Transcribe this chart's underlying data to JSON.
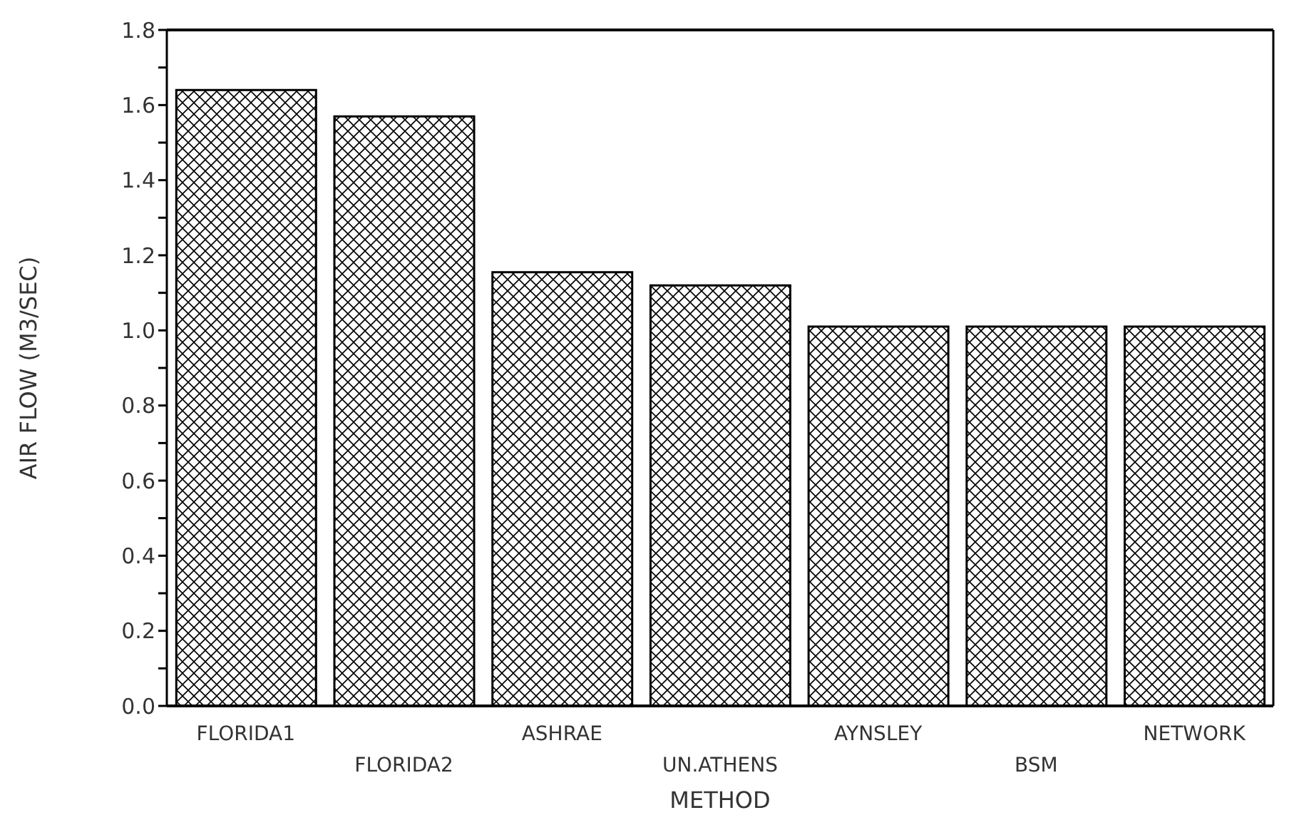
{
  "chart_data": {
    "type": "bar",
    "xlabel": "METHOD",
    "ylabel": "AIR FLOW (M3/SEC)",
    "categories": [
      "FLORIDA1",
      "FLORIDA2",
      "ASHRAE",
      "UN.ATHENS",
      "AYNSLEY",
      "BSM",
      "NETWORK"
    ],
    "values": [
      1.64,
      1.57,
      1.155,
      1.12,
      1.01,
      1.01,
      1.01
    ],
    "color": "#000000",
    "ylim": [
      0,
      1.8
    ],
    "yticks": [
      {
        "value": 0,
        "label": "0.0"
      },
      {
        "value": 0.1,
        "label": null
      },
      {
        "value": 0.2,
        "label": "0.2"
      },
      {
        "value": 0.3,
        "label": null
      },
      {
        "value": 0.4,
        "label": "0.4"
      },
      {
        "value": 0.5,
        "label": null
      },
      {
        "value": 0.6,
        "label": "0.6"
      },
      {
        "value": 0.7,
        "label": null
      },
      {
        "value": 0.8,
        "label": "0.8"
      },
      {
        "value": 0.9,
        "label": null
      },
      {
        "value": 1.0,
        "label": "1.0"
      },
      {
        "value": 1.1,
        "label": null
      },
      {
        "value": 1.2,
        "label": "1.2"
      },
      {
        "value": 1.3,
        "label": null
      },
      {
        "value": 1.4,
        "label": "1.4"
      },
      {
        "value": 1.5,
        "label": null
      },
      {
        "value": 1.6,
        "label": "1.6"
      },
      {
        "value": 1.7,
        "label": null
      },
      {
        "value": 1.8,
        "label": "1.8"
      }
    ],
    "grid": false
  }
}
